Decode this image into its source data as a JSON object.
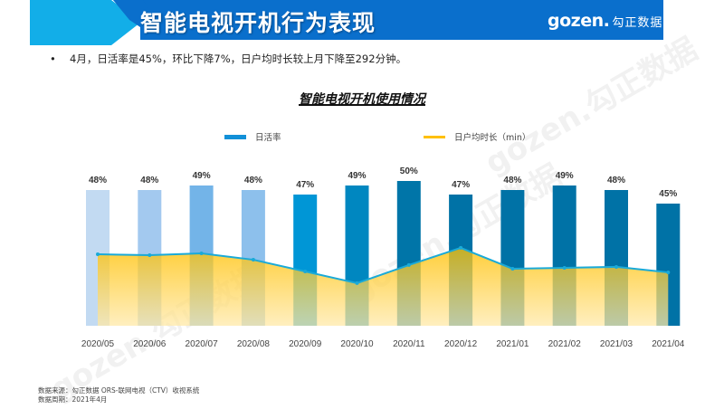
{
  "header": {
    "title": "智能电视开机行为表现",
    "logo_latin": "gozen.",
    "logo_cn": "勾正数据",
    "banner_color": "#0a6fcc",
    "accent_color": "#12aee8"
  },
  "summary": {
    "bullet": "•",
    "text": "4月，日活率是45%，环比下降7%，日户均时长较上月下降至292分钟。"
  },
  "chart_data": {
    "type": "bar",
    "title": "智能电视开机使用情况",
    "categories": [
      "2020/05",
      "2020/06",
      "2020/07",
      "2020/08",
      "2020/09",
      "2020/10",
      "2020/11",
      "2020/12",
      "2021/01",
      "2021/02",
      "2021/03",
      "2021/04"
    ],
    "legend_position": "top",
    "grid": false,
    "series": [
      {
        "name": "日活率",
        "type": "bar",
        "unit": "%",
        "values": [
          48,
          48,
          49,
          48,
          47,
          49,
          50,
          47,
          48,
          49,
          48,
          45
        ],
        "labels": [
          "48%",
          "48%",
          "49%",
          "48%",
          "47%",
          "49%",
          "50%",
          "47%",
          "48%",
          "49%",
          "48%",
          "45%"
        ],
        "colors": [
          "#c2daf2",
          "#a3c9ef",
          "#73b4e8",
          "#8dc0ec",
          "#0096d6",
          "#0087c0",
          "#0075a8",
          "#0072a6",
          "#0072a6",
          "#0072a6",
          "#0072a6",
          "#0072a6"
        ],
        "legend_color": "#1290d8"
      },
      {
        "name": "日户均时长（min）",
        "type": "area",
        "unit": "min",
        "values": [
          391,
          386,
          396,
          361,
          297,
          233,
          332,
          426,
          312,
          317,
          322,
          292
        ],
        "line_color": "#1aaad8",
        "fill_color": "#ffc000",
        "legend_color": "#ffc000"
      }
    ],
    "ylim_bar": [
      0,
      50
    ],
    "ylim_line": [
      0,
      440
    ]
  },
  "footer": {
    "source": "数据来源：勾正数据 ORS-联网电视（CTV）收视系统",
    "period": "数据周期：2021年4月"
  },
  "watermark": "gozen.勾正数据"
}
